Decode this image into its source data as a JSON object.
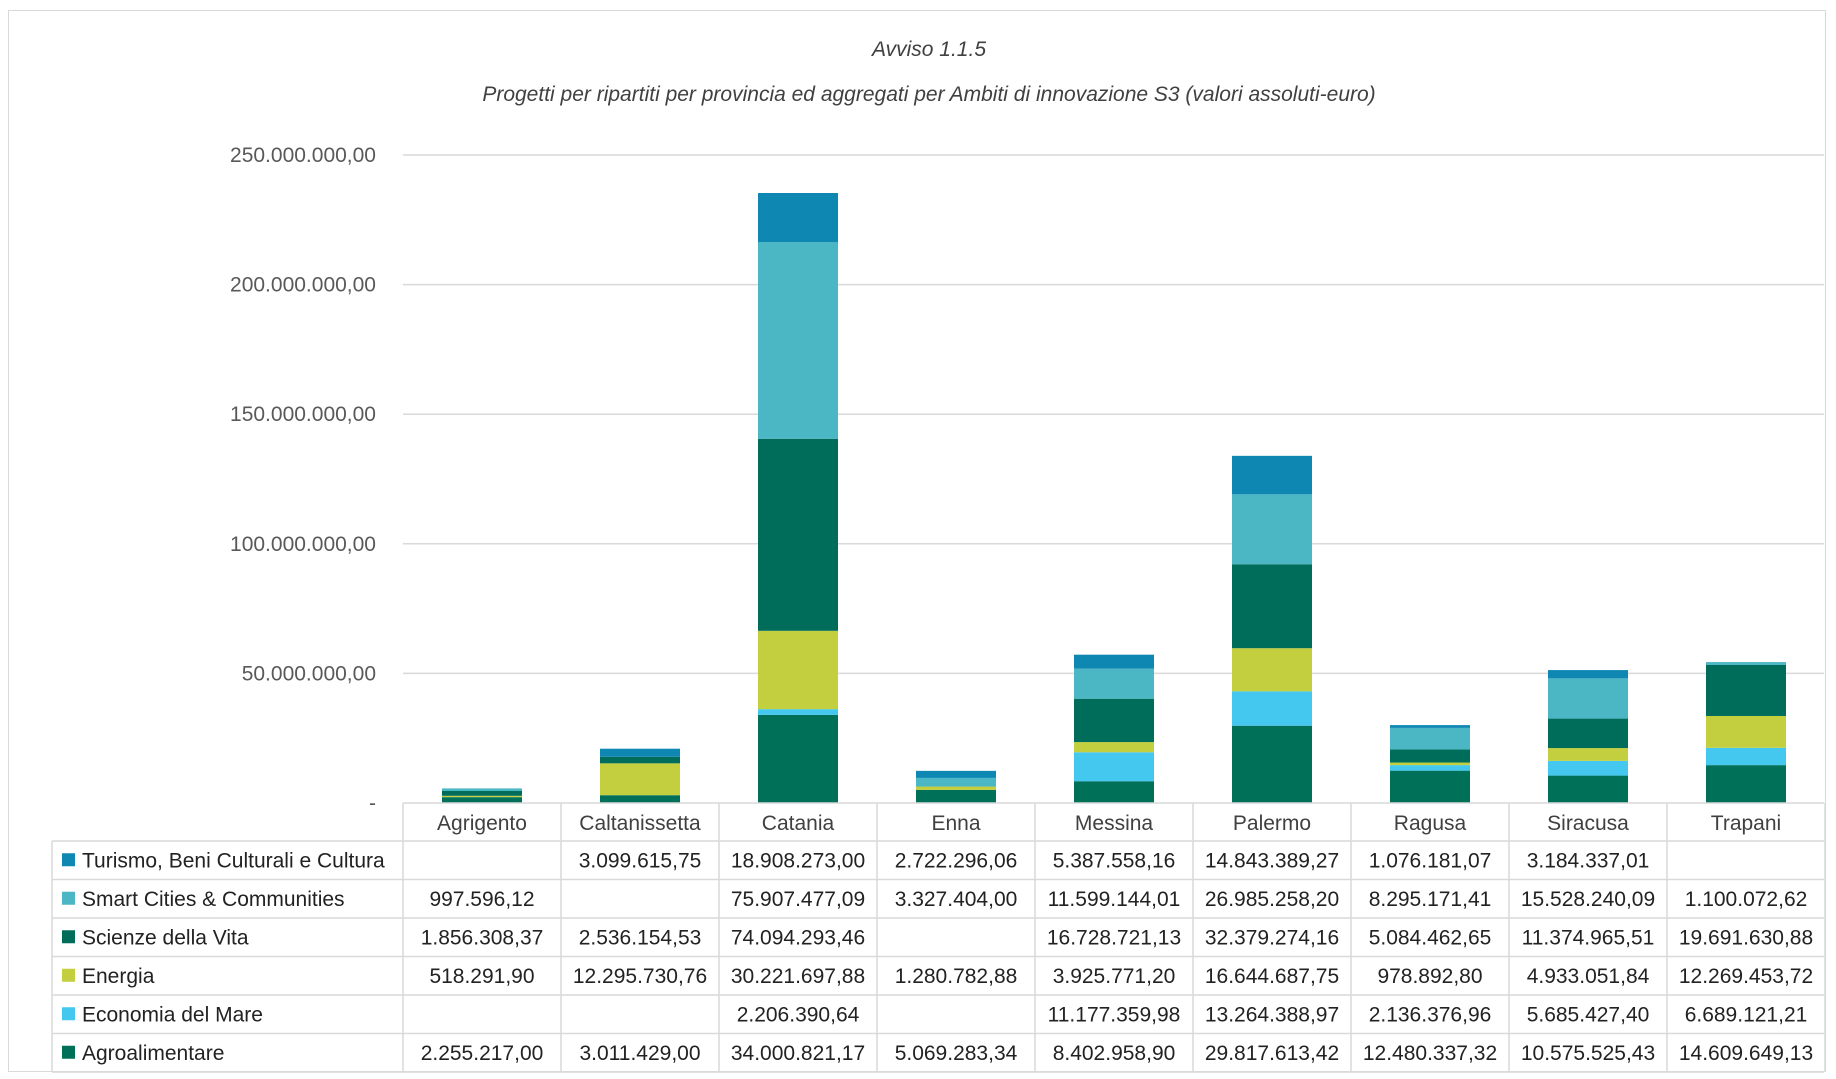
{
  "chart_data": {
    "type": "stacked-bar-with-data-table",
    "title": "Avviso  1.1.5",
    "subtitle": "Progetti per ripartiti per provincia ed aggregati per Ambiti  di innovazione S3 (valori assoluti-euro)",
    "xlabel": "",
    "ylabel": "",
    "ylim": [
      0,
      250000000
    ],
    "y_ticks": [
      0,
      50000000,
      100000000,
      150000000,
      200000000,
      250000000
    ],
    "y_tick_labels": [
      "-",
      "50.000.000,00",
      "100.000.000,00",
      "150.000.000,00",
      "200.000.000,00",
      "250.000.000,00"
    ],
    "grid": true,
    "legend_placement": "data table, left column",
    "categories": [
      "Agrigento",
      "Caltanissetta",
      "Catania",
      "Enna",
      "Messina",
      "Palermo",
      "Ragusa",
      "Siracusa",
      "Trapani"
    ],
    "series": [
      {
        "name": "Turismo, Beni Culturali e Cultura",
        "color": "#0e87b3",
        "values": [
          null,
          3099615.75,
          18908273.0,
          2722296.06,
          5387558.16,
          14843389.27,
          1076181.07,
          3184337.01,
          null
        ],
        "labels": [
          "",
          "3.099.615,75",
          "18.908.273,00",
          "2.722.296,06",
          "5.387.558,16",
          "14.843.389,27",
          "1.076.181,07",
          "3.184.337,01",
          ""
        ]
      },
      {
        "name": "Smart Cities & Communities",
        "color": "#4bb6c4",
        "values": [
          997596.12,
          null,
          75907477.09,
          3327404.0,
          11599144.01,
          26985258.2,
          8295171.41,
          15528240.09,
          1100072.62
        ],
        "labels": [
          "997.596,12",
          "",
          "75.907.477,09",
          "3.327.404,00",
          "11.599.144,01",
          "26.985.258,20",
          "8.295.171,41",
          "15.528.240,09",
          "1.100.072,62"
        ]
      },
      {
        "name": "Scienze della Vita",
        "color": "#006d5b",
        "values": [
          1856308.37,
          2536154.53,
          74094293.46,
          null,
          16728721.13,
          32379274.16,
          5084462.65,
          11374965.51,
          19691630.88
        ],
        "labels": [
          "1.856.308,37",
          "2.536.154,53",
          "74.094.293,46",
          "",
          "16.728.721,13",
          "32.379.274,16",
          "5.084.462,65",
          "11.374.965,51",
          "19.691.630,88"
        ]
      },
      {
        "name": "Energia",
        "color": "#c3cf3e",
        "values": [
          518291.9,
          12295730.76,
          30221697.88,
          1280782.88,
          3925771.2,
          16644687.75,
          978892.8,
          4933051.84,
          12269453.72
        ],
        "labels": [
          "518.291,90",
          "12.295.730,76",
          "30.221.697,88",
          "1.280.782,88",
          "3.925.771,20",
          "16.644.687,75",
          "978.892,80",
          "4.933.051,84",
          "12.269.453,72"
        ]
      },
      {
        "name": "Economia del Mare",
        "color": "#45c8ef",
        "values": [
          null,
          null,
          2206390.64,
          null,
          11177359.98,
          13264388.97,
          2136376.96,
          5685427.4,
          6689121.21
        ],
        "labels": [
          "",
          "",
          "2.206.390,64",
          "",
          "11.177.359,98",
          "13.264.388,97",
          "2.136.376,96",
          "5.685.427,40",
          "6.689.121,21"
        ]
      },
      {
        "name": "Agroalimentare",
        "color": "#007158",
        "values": [
          2255217.0,
          3011429.0,
          34000821.17,
          5069283.34,
          8402958.9,
          29817613.42,
          12480337.32,
          10575525.43,
          14609649.13
        ],
        "labels": [
          "2.255.217,00",
          "3.011.429,00",
          "34.000.821,17",
          "5.069.283,34",
          "8.402.958,90",
          "29.817.613,42",
          "12.480.337,32",
          "10.575.525,43",
          "14.609.649,13"
        ]
      }
    ]
  }
}
